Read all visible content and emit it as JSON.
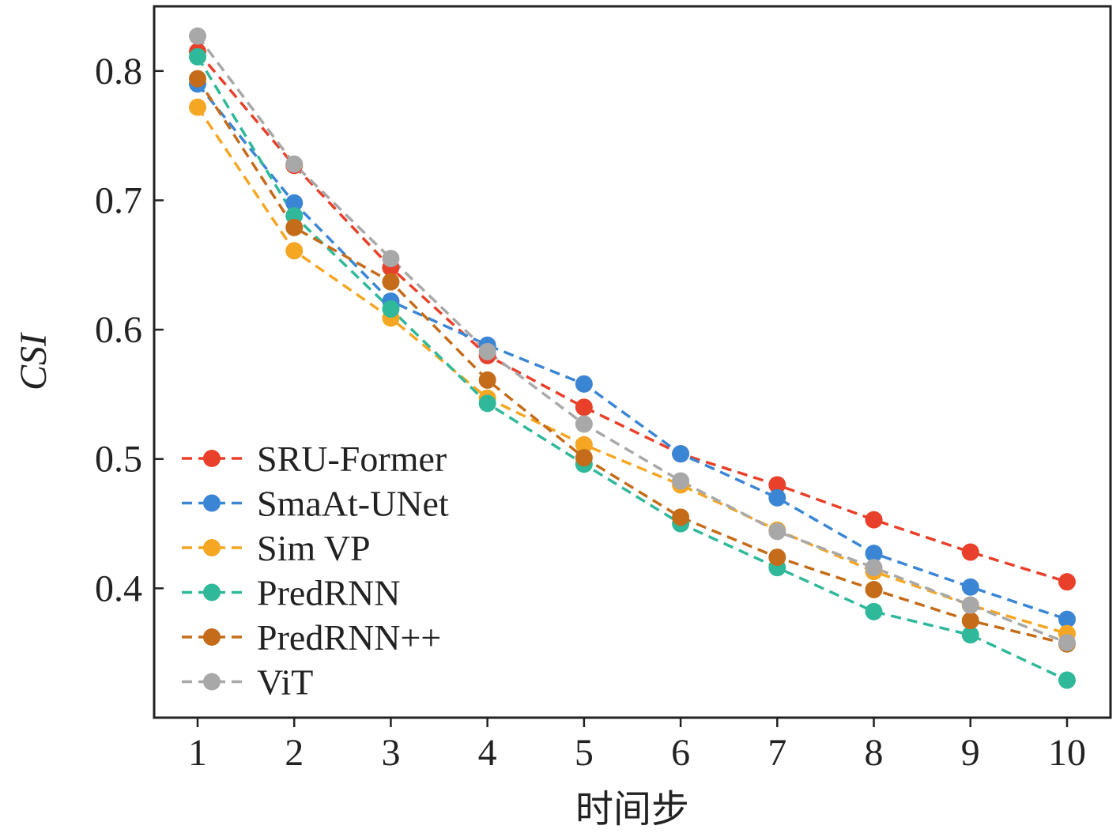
{
  "chart_data": {
    "type": "line",
    "title": "",
    "xlabel": "时间步",
    "ylabel": "CSI",
    "x": [
      1,
      2,
      3,
      4,
      5,
      6,
      7,
      8,
      9,
      10
    ],
    "xlim": [
      0.55,
      10.45
    ],
    "ylim": [
      0.3,
      0.85
    ],
    "yticks": [
      "0.4",
      "0.5",
      "0.6",
      "0.7",
      "0.8"
    ],
    "ytick_values": [
      0.4,
      0.5,
      0.6,
      0.7,
      0.8
    ],
    "grid": false,
    "legend_position": "lower-left",
    "line_style": "dashed",
    "series": [
      {
        "name": "SRU-Former",
        "color": "#e8402a",
        "values": [
          0.815,
          0.727,
          0.648,
          0.58,
          0.54,
          0.504,
          0.48,
          0.453,
          0.428,
          0.405
        ]
      },
      {
        "name": "SmaAt-UNet",
        "color": "#3b86d4",
        "values": [
          0.79,
          0.698,
          0.622,
          0.588,
          0.558,
          0.504,
          0.47,
          0.427,
          0.401,
          0.376
        ]
      },
      {
        "name": "Sim VP",
        "color": "#f5a623",
        "values": [
          0.772,
          0.661,
          0.609,
          0.547,
          0.511,
          0.48,
          0.445,
          0.413,
          0.387,
          0.365
        ]
      },
      {
        "name": "PredRNN",
        "color": "#2fb89a",
        "values": [
          0.811,
          0.688,
          0.616,
          0.543,
          0.496,
          0.45,
          0.416,
          0.382,
          0.364,
          0.329
        ]
      },
      {
        "name": "PredRNN++",
        "color": "#c46c1a",
        "values": [
          0.794,
          0.679,
          0.637,
          0.561,
          0.501,
          0.455,
          0.424,
          0.399,
          0.375,
          0.357
        ]
      },
      {
        "name": "ViT",
        "color": "#a8a8a8",
        "values": [
          0.827,
          0.728,
          0.655,
          0.583,
          0.527,
          0.483,
          0.444,
          0.416,
          0.387,
          0.358
        ]
      }
    ]
  }
}
